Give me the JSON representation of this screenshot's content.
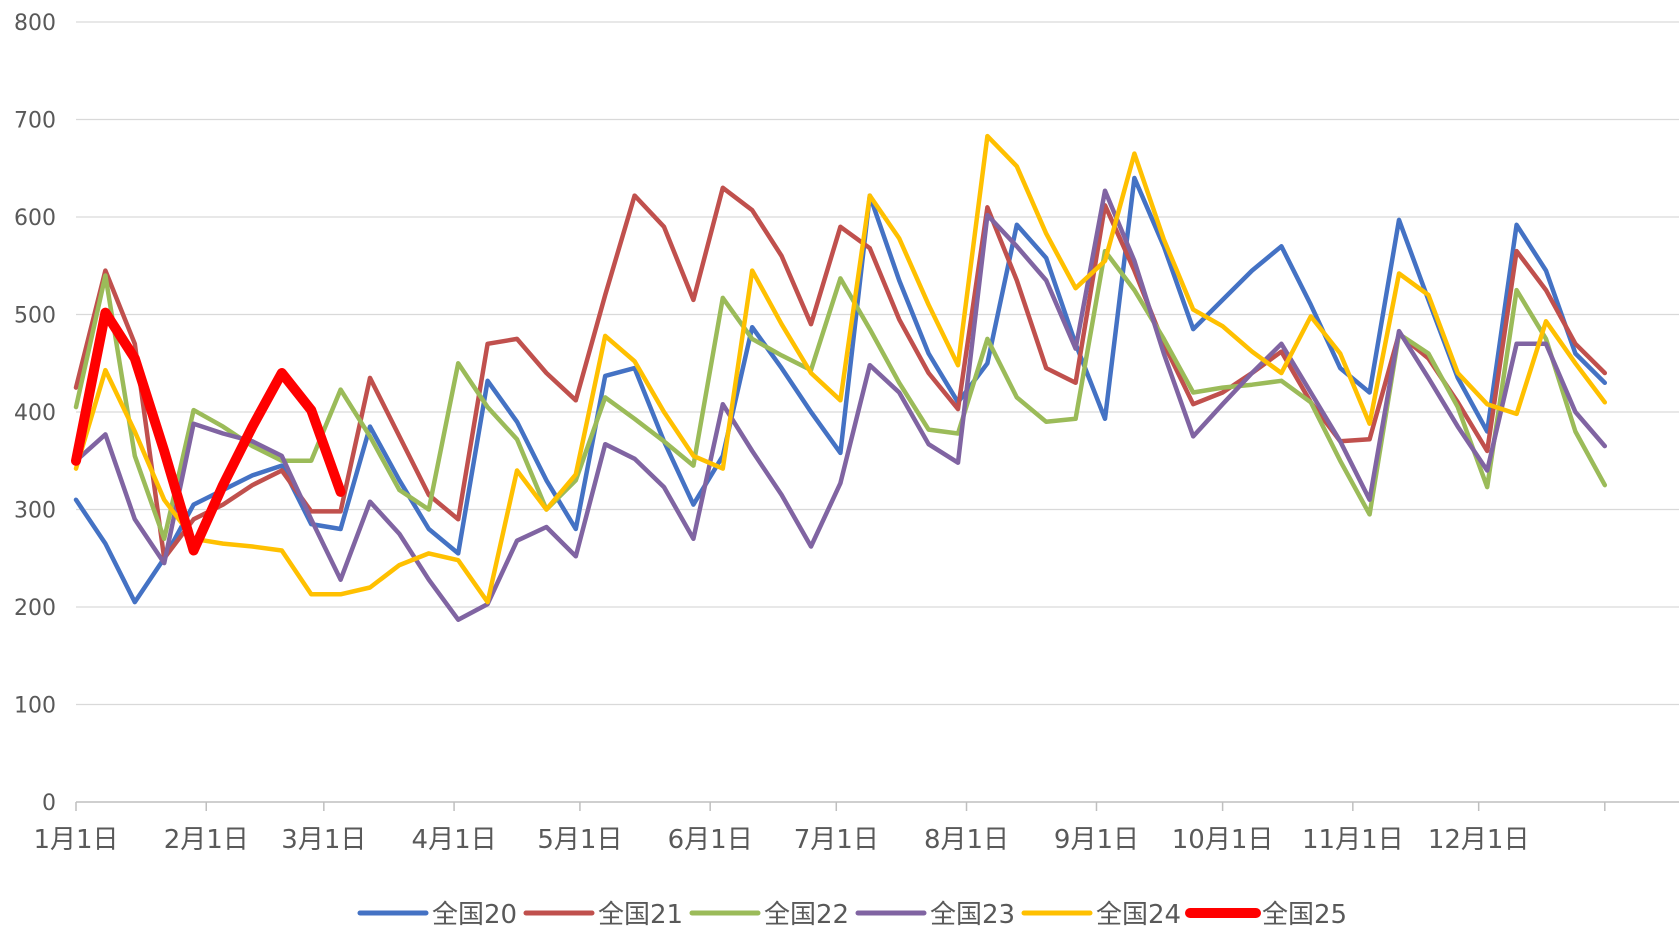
{
  "chart_data": {
    "type": "line",
    "title": "",
    "xlabel": "",
    "ylabel": "",
    "ylim": [
      0,
      800
    ],
    "yticks": [
      "0",
      "100",
      "200",
      "300",
      "400",
      "500",
      "600",
      "700",
      "800"
    ],
    "x_axis_labels": [
      "1月1日",
      "2月1日",
      "3月1日",
      "4月1日",
      "5月1日",
      "6月1日",
      "7月1日",
      "8月1日",
      "9月1日",
      "10月1日",
      "11月1日",
      "12月1日"
    ],
    "grid": true,
    "legend_position": "bottom",
    "series": [
      {
        "name": "全国20",
        "color": "#4472C4",
        "points": [
          [
            0,
            310
          ],
          [
            1,
            265
          ],
          [
            2,
            205
          ],
          [
            3,
            250
          ],
          [
            4,
            305
          ],
          [
            5,
            320
          ],
          [
            6,
            335
          ],
          [
            7,
            345
          ],
          [
            8,
            285
          ],
          [
            9,
            280
          ],
          [
            10,
            385
          ],
          [
            11,
            330
          ],
          [
            12,
            280
          ],
          [
            13,
            255
          ],
          [
            14,
            432
          ],
          [
            15,
            390
          ],
          [
            16,
            330
          ],
          [
            17,
            280
          ],
          [
            18,
            437
          ],
          [
            19,
            445
          ],
          [
            20,
            370
          ],
          [
            21,
            305
          ],
          [
            22,
            355
          ],
          [
            23,
            487
          ],
          [
            24,
            445
          ],
          [
            25,
            400
          ],
          [
            26,
            358
          ],
          [
            27,
            622
          ],
          [
            28,
            535
          ],
          [
            29,
            460
          ],
          [
            30,
            410
          ],
          [
            31,
            450
          ],
          [
            32,
            592
          ],
          [
            33,
            558
          ],
          [
            34,
            470
          ],
          [
            35,
            393
          ],
          [
            36,
            640
          ],
          [
            37,
            570
          ],
          [
            38,
            485
          ],
          [
            39,
            515
          ],
          [
            40,
            545
          ],
          [
            41,
            570
          ],
          [
            42,
            510
          ],
          [
            43,
            445
          ],
          [
            44,
            420
          ],
          [
            45,
            597
          ],
          [
            46,
            515
          ],
          [
            47,
            435
          ],
          [
            48,
            380
          ],
          [
            49,
            592
          ],
          [
            50,
            545
          ],
          [
            51,
            460
          ],
          [
            52,
            430
          ]
        ]
      },
      {
        "name": "全国21",
        "color": "#C0504D",
        "points": [
          [
            0,
            425
          ],
          [
            1,
            545
          ],
          [
            2,
            470
          ],
          [
            3,
            250
          ],
          [
            4,
            290
          ],
          [
            5,
            305
          ],
          [
            6,
            325
          ],
          [
            7,
            340
          ],
          [
            8,
            298
          ],
          [
            9,
            298
          ],
          [
            10,
            435
          ],
          [
            11,
            375
          ],
          [
            12,
            315
          ],
          [
            13,
            290
          ],
          [
            14,
            470
          ],
          [
            15,
            475
          ],
          [
            16,
            440
          ],
          [
            17,
            412
          ],
          [
            18,
            520
          ],
          [
            19,
            622
          ],
          [
            20,
            590
          ],
          [
            21,
            515
          ],
          [
            22,
            630
          ],
          [
            23,
            607
          ],
          [
            24,
            560
          ],
          [
            25,
            490
          ],
          [
            26,
            590
          ],
          [
            27,
            568
          ],
          [
            28,
            495
          ],
          [
            29,
            440
          ],
          [
            30,
            403
          ],
          [
            31,
            610
          ],
          [
            32,
            535
          ],
          [
            33,
            445
          ],
          [
            34,
            430
          ],
          [
            35,
            612
          ],
          [
            36,
            545
          ],
          [
            37,
            470
          ],
          [
            38,
            408
          ],
          [
            39,
            420
          ],
          [
            40,
            440
          ],
          [
            41,
            462
          ],
          [
            42,
            410
          ],
          [
            43,
            370
          ],
          [
            44,
            372
          ],
          [
            45,
            480
          ],
          [
            46,
            455
          ],
          [
            47,
            410
          ],
          [
            48,
            360
          ],
          [
            49,
            565
          ],
          [
            50,
            525
          ],
          [
            51,
            470
          ],
          [
            52,
            440
          ]
        ]
      },
      {
        "name": "全国22",
        "color": "#9BBB59",
        "points": [
          [
            0,
            405
          ],
          [
            1,
            540
          ],
          [
            2,
            355
          ],
          [
            3,
            270
          ],
          [
            4,
            402
          ],
          [
            5,
            385
          ],
          [
            6,
            365
          ],
          [
            7,
            350
          ],
          [
            8,
            350
          ],
          [
            9,
            423
          ],
          [
            10,
            375
          ],
          [
            11,
            320
          ],
          [
            12,
            300
          ],
          [
            13,
            450
          ],
          [
            14,
            405
          ],
          [
            15,
            372
          ],
          [
            16,
            300
          ],
          [
            17,
            330
          ],
          [
            18,
            415
          ],
          [
            19,
            393
          ],
          [
            20,
            370
          ],
          [
            21,
            345
          ],
          [
            22,
            517
          ],
          [
            23,
            475
          ],
          [
            24,
            458
          ],
          [
            25,
            443
          ],
          [
            26,
            537
          ],
          [
            27,
            485
          ],
          [
            28,
            430
          ],
          [
            29,
            382
          ],
          [
            30,
            378
          ],
          [
            31,
            475
          ],
          [
            32,
            415
          ],
          [
            33,
            390
          ],
          [
            34,
            393
          ],
          [
            35,
            565
          ],
          [
            36,
            525
          ],
          [
            37,
            475
          ],
          [
            38,
            420
          ],
          [
            39,
            425
          ],
          [
            40,
            428
          ],
          [
            41,
            432
          ],
          [
            42,
            410
          ],
          [
            43,
            350
          ],
          [
            44,
            295
          ],
          [
            45,
            480
          ],
          [
            46,
            460
          ],
          [
            47,
            405
          ],
          [
            48,
            323
          ],
          [
            49,
            525
          ],
          [
            50,
            475
          ],
          [
            51,
            380
          ],
          [
            52,
            325
          ]
        ]
      },
      {
        "name": "全国23",
        "color": "#8064A2",
        "points": [
          [
            0,
            350
          ],
          [
            1,
            377
          ],
          [
            2,
            290
          ],
          [
            3,
            245
          ],
          [
            4,
            388
          ],
          [
            5,
            378
          ],
          [
            6,
            370
          ],
          [
            7,
            355
          ],
          [
            8,
            290
          ],
          [
            9,
            228
          ],
          [
            10,
            308
          ],
          [
            11,
            275
          ],
          [
            12,
            228
          ],
          [
            13,
            187
          ],
          [
            14,
            203
          ],
          [
            15,
            268
          ],
          [
            16,
            282
          ],
          [
            17,
            252
          ],
          [
            18,
            367
          ],
          [
            19,
            352
          ],
          [
            20,
            323
          ],
          [
            21,
            270
          ],
          [
            22,
            408
          ],
          [
            23,
            360
          ],
          [
            24,
            315
          ],
          [
            25,
            262
          ],
          [
            26,
            327
          ],
          [
            27,
            448
          ],
          [
            28,
            420
          ],
          [
            29,
            367
          ],
          [
            30,
            348
          ],
          [
            31,
            602
          ],
          [
            32,
            570
          ],
          [
            33,
            535
          ],
          [
            34,
            465
          ],
          [
            35,
            627
          ],
          [
            36,
            555
          ],
          [
            37,
            460
          ],
          [
            38,
            375
          ],
          [
            39,
            408
          ],
          [
            40,
            440
          ],
          [
            41,
            470
          ],
          [
            42,
            420
          ],
          [
            43,
            370
          ],
          [
            44,
            310
          ],
          [
            45,
            483
          ],
          [
            46,
            435
          ],
          [
            47,
            385
          ],
          [
            48,
            340
          ],
          [
            49,
            470
          ],
          [
            50,
            470
          ],
          [
            51,
            400
          ],
          [
            52,
            365
          ]
        ]
      },
      {
        "name": "全国24",
        "color": "#FFC000",
        "points": [
          [
            0,
            342
          ],
          [
            1,
            443
          ],
          [
            2,
            380
          ],
          [
            3,
            310
          ],
          [
            4,
            270
          ],
          [
            5,
            265
          ],
          [
            6,
            262
          ],
          [
            7,
            258
          ],
          [
            8,
            213
          ],
          [
            9,
            213
          ],
          [
            10,
            220
          ],
          [
            11,
            243
          ],
          [
            12,
            255
          ],
          [
            13,
            248
          ],
          [
            14,
            205
          ],
          [
            15,
            340
          ],
          [
            16,
            300
          ],
          [
            17,
            336
          ],
          [
            18,
            478
          ],
          [
            19,
            452
          ],
          [
            20,
            400
          ],
          [
            21,
            355
          ],
          [
            22,
            342
          ],
          [
            23,
            545
          ],
          [
            24,
            490
          ],
          [
            25,
            440
          ],
          [
            26,
            412
          ],
          [
            27,
            622
          ],
          [
            28,
            578
          ],
          [
            29,
            510
          ],
          [
            30,
            448
          ],
          [
            31,
            683
          ],
          [
            32,
            652
          ],
          [
            33,
            583
          ],
          [
            34,
            527
          ],
          [
            35,
            555
          ],
          [
            36,
            665
          ],
          [
            37,
            577
          ],
          [
            38,
            505
          ],
          [
            39,
            488
          ],
          [
            40,
            462
          ],
          [
            41,
            440
          ],
          [
            42,
            498
          ],
          [
            43,
            460
          ],
          [
            44,
            388
          ],
          [
            45,
            542
          ],
          [
            46,
            520
          ],
          [
            47,
            440
          ],
          [
            48,
            408
          ],
          [
            49,
            398
          ],
          [
            50,
            493
          ],
          [
            51,
            450
          ],
          [
            52,
            410
          ]
        ]
      },
      {
        "name": "全国25",
        "color": "#FF0000",
        "points": [
          [
            0,
            350
          ],
          [
            1,
            502
          ],
          [
            2,
            455
          ],
          [
            3,
            360
          ],
          [
            4,
            258
          ],
          [
            5,
            325
          ],
          [
            6,
            385
          ],
          [
            7,
            440
          ],
          [
            8,
            402
          ],
          [
            9,
            318
          ]
        ]
      }
    ]
  }
}
